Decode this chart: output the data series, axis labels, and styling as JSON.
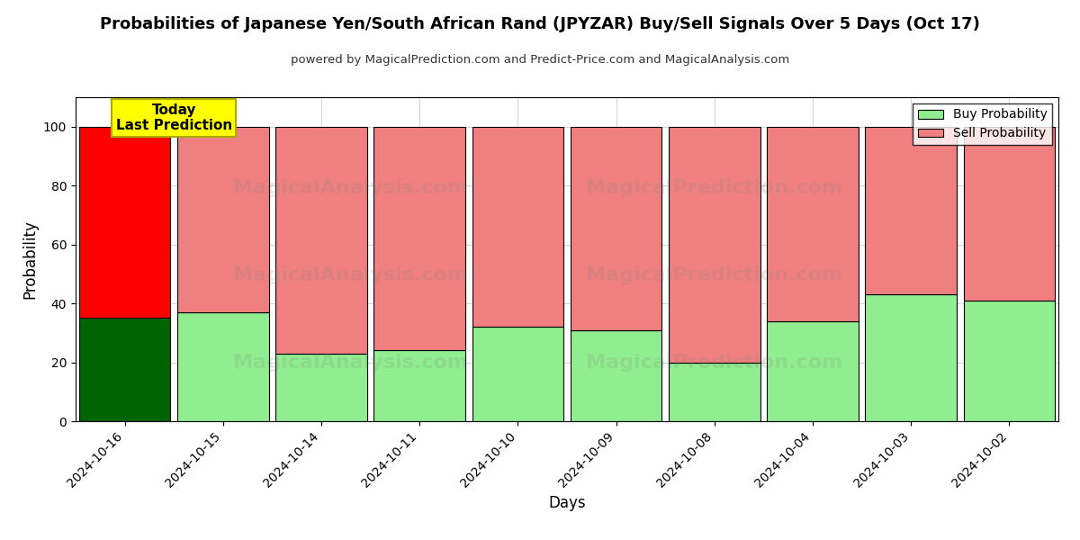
{
  "title": "Probabilities of Japanese Yen/South African Rand (JPYZAR) Buy/Sell Signals Over 5 Days (Oct 17)",
  "subtitle": "powered by MagicalPrediction.com and Predict-Price.com and MagicalAnalysis.com",
  "xlabel": "Days",
  "ylabel": "Probability",
  "categories": [
    "2024-10-16",
    "2024-10-15",
    "2024-10-14",
    "2024-10-11",
    "2024-10-10",
    "2024-10-09",
    "2024-10-08",
    "2024-10-04",
    "2024-10-03",
    "2024-10-02"
  ],
  "buy_values": [
    35,
    37,
    23,
    24,
    32,
    31,
    20,
    34,
    43,
    41
  ],
  "sell_values": [
    65,
    63,
    77,
    76,
    68,
    69,
    80,
    66,
    57,
    59
  ],
  "buy_color_today": "#006400",
  "sell_color_today": "#ff0000",
  "buy_color_rest": "#90EE90",
  "sell_color_rest": "#F08080",
  "today_label_bg": "#ffff00",
  "today_label_text": "Today\nLast Prediction",
  "ylim": [
    0,
    110
  ],
  "yticks": [
    0,
    20,
    40,
    60,
    80,
    100
  ],
  "dashed_line_y": 110,
  "legend_buy": "Buy Probability",
  "legend_sell": "Sell Probability",
  "bar_edge_color": "#000000",
  "bar_width": 0.93
}
